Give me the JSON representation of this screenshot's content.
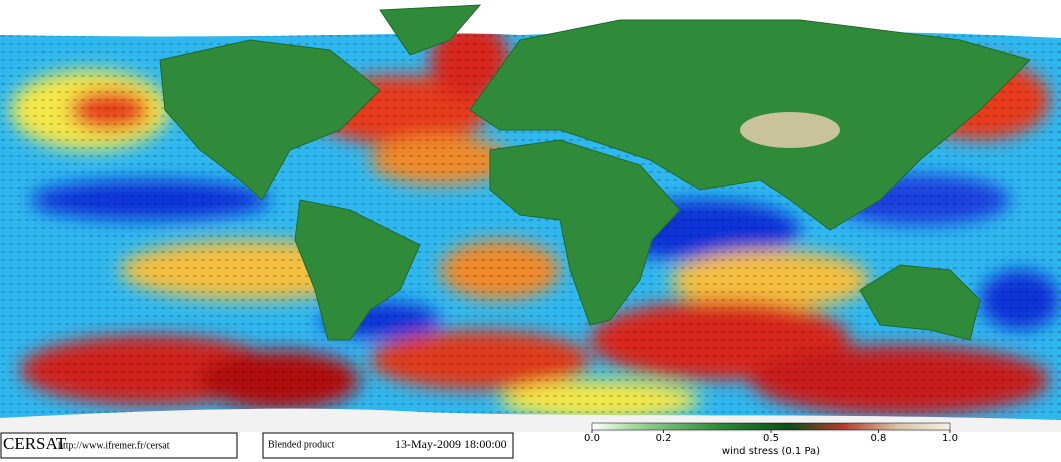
{
  "footer": {
    "logo": "CERSAT",
    "url": "http://www.ifremer.fr/cersat",
    "product": "Blended product",
    "timestamp": "13-May-2009 18:00:00"
  },
  "colorbar": {
    "label": "wind stress (0.1 Pa)",
    "range": [
      0,
      1
    ],
    "ticks": [
      {
        "value": 0,
        "label": "0.0"
      },
      0.2,
      0.5,
      0.8,
      {
        "value": 1,
        "label": "1.0"
      }
    ]
  }
}
